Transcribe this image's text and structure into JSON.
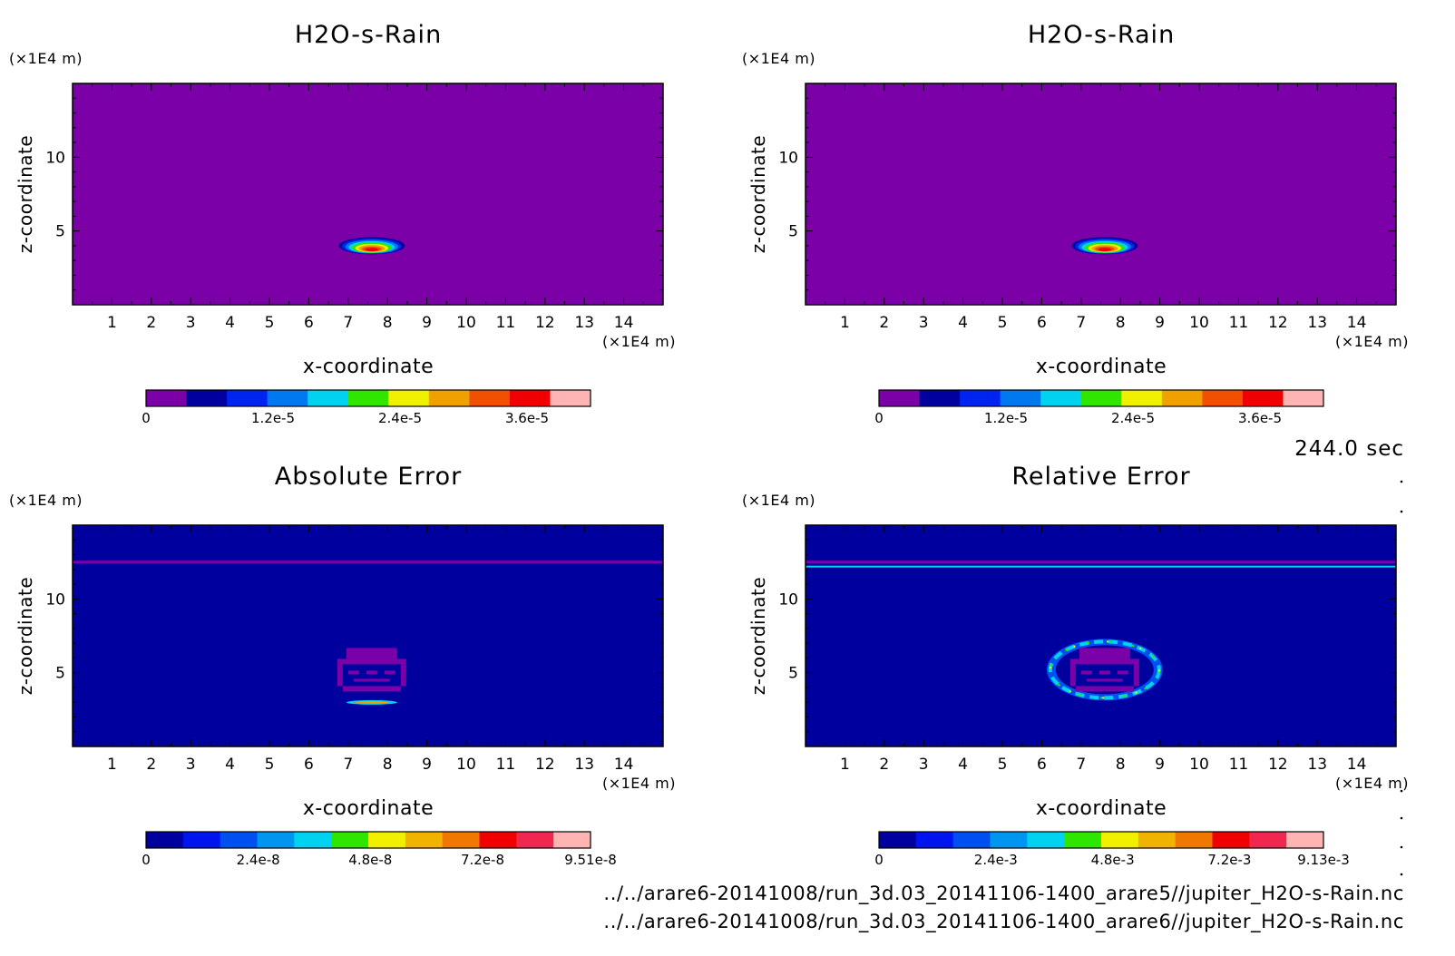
{
  "time_label": "244.0 sec",
  "files": [
    "../../arare6-20141008/run_3d.03_20141106-1400_arare5//jupiter_H2O-s-Rain.nc",
    "../../arare6-20141008/run_3d.03_20141106-1400_arare6//jupiter_H2O-s-Rain.nc"
  ],
  "palettes": {
    "rain": [
      "#7b00a8",
      "#00009e",
      "#0024f0",
      "#0078f0",
      "#00d2f0",
      "#2ee600",
      "#f0f000",
      "#f0a000",
      "#f05000",
      "#f00000",
      "#ffb4b4"
    ],
    "error": [
      "#00009e",
      "#0014f0",
      "#0050f0",
      "#0096f0",
      "#00d2f0",
      "#2ee600",
      "#f0f000",
      "#f0b400",
      "#f07800",
      "#f00000",
      "#f02850",
      "#ffb4b4"
    ]
  },
  "chart_data": [
    {
      "type": "heatmap",
      "title": "H2O-s-Rain",
      "xlabel": "x-coordinate",
      "ylabel": "z-coordinate",
      "x_unit": "(×1E4 m)",
      "y_unit": "(×1E4 m)",
      "xlim": [
        0,
        15
      ],
      "ylim": [
        0,
        15
      ],
      "xticks": [
        "1",
        "2",
        "3",
        "4",
        "5",
        "6",
        "7",
        "8",
        "9",
        "10",
        "11",
        "12",
        "13",
        "14"
      ],
      "yticks": [
        "5",
        "10"
      ],
      "colorbar": {
        "min": 0,
        "max": 4.2e-05,
        "tick_labels": [
          "0",
          "1.2e-5",
          "2.4e-5",
          "3.6e-5"
        ],
        "tick_values": [
          0,
          1.2e-05,
          2.4e-05,
          3.6e-05
        ],
        "palette": "rain"
      },
      "feature": {
        "kind": "blob",
        "center_x": 7.6,
        "center_z": 4.0,
        "half_width": 0.8,
        "half_height": 0.55
      }
    },
    {
      "type": "heatmap",
      "title": "H2O-s-Rain",
      "xlabel": "x-coordinate",
      "ylabel": "z-coordinate",
      "x_unit": "(×1E4 m)",
      "y_unit": "(×1E4 m)",
      "xlim": [
        0,
        15
      ],
      "ylim": [
        0,
        15
      ],
      "xticks": [
        "1",
        "2",
        "3",
        "4",
        "5",
        "6",
        "7",
        "8",
        "9",
        "10",
        "11",
        "12",
        "13",
        "14"
      ],
      "yticks": [
        "5",
        "10"
      ],
      "colorbar": {
        "min": 0,
        "max": 4.2e-05,
        "tick_labels": [
          "0",
          "1.2e-5",
          "2.4e-5",
          "3.6e-5"
        ],
        "tick_values": [
          0,
          1.2e-05,
          2.4e-05,
          3.6e-05
        ],
        "palette": "rain"
      },
      "feature": {
        "kind": "blob",
        "center_x": 7.6,
        "center_z": 4.0,
        "half_width": 0.8,
        "half_height": 0.55
      }
    },
    {
      "type": "heatmap",
      "title": "Absolute Error",
      "xlabel": "x-coordinate",
      "ylabel": "z-coordinate",
      "x_unit": "(×1E4 m)",
      "y_unit": "(×1E4 m)",
      "xlim": [
        0,
        15
      ],
      "ylim": [
        0,
        15
      ],
      "xticks": [
        "1",
        "2",
        "3",
        "4",
        "5",
        "6",
        "7",
        "8",
        "9",
        "10",
        "11",
        "12",
        "13",
        "14"
      ],
      "yticks": [
        "5",
        "10"
      ],
      "colorbar": {
        "min": 0,
        "max": 9.51e-08,
        "tick_labels": [
          "0",
          "2.4e-8",
          "4.8e-8",
          "7.2e-8",
          "9.51e-8"
        ],
        "tick_values": [
          0,
          2.4e-08,
          4.8e-08,
          7.2e-08,
          9.51e-08
        ],
        "palette": "error"
      },
      "feature": {
        "kind": "abs_error",
        "center_x": 7.6,
        "center_z": 5.2,
        "band_z": 12.5
      }
    },
    {
      "type": "heatmap",
      "title": "Relative Error",
      "xlabel": "x-coordinate",
      "ylabel": "z-coordinate",
      "x_unit": "(×1E4 m)",
      "y_unit": "(×1E4 m)",
      "xlim": [
        0,
        15
      ],
      "ylim": [
        0,
        15
      ],
      "xticks": [
        "1",
        "2",
        "3",
        "4",
        "5",
        "6",
        "7",
        "8",
        "9",
        "10",
        "11",
        "12",
        "13",
        "14"
      ],
      "yticks": [
        "5",
        "10"
      ],
      "colorbar": {
        "min": 0,
        "max": 0.00913,
        "tick_labels": [
          "0",
          "2.4e-3",
          "4.8e-3",
          "7.2e-3",
          "9.13e-3"
        ],
        "tick_values": [
          0,
          0.0024,
          0.0048,
          0.0072,
          0.00913
        ],
        "palette": "error"
      },
      "feature": {
        "kind": "rel_error",
        "center_x": 7.6,
        "center_z": 5.2,
        "band_z": 12.5
      }
    }
  ]
}
